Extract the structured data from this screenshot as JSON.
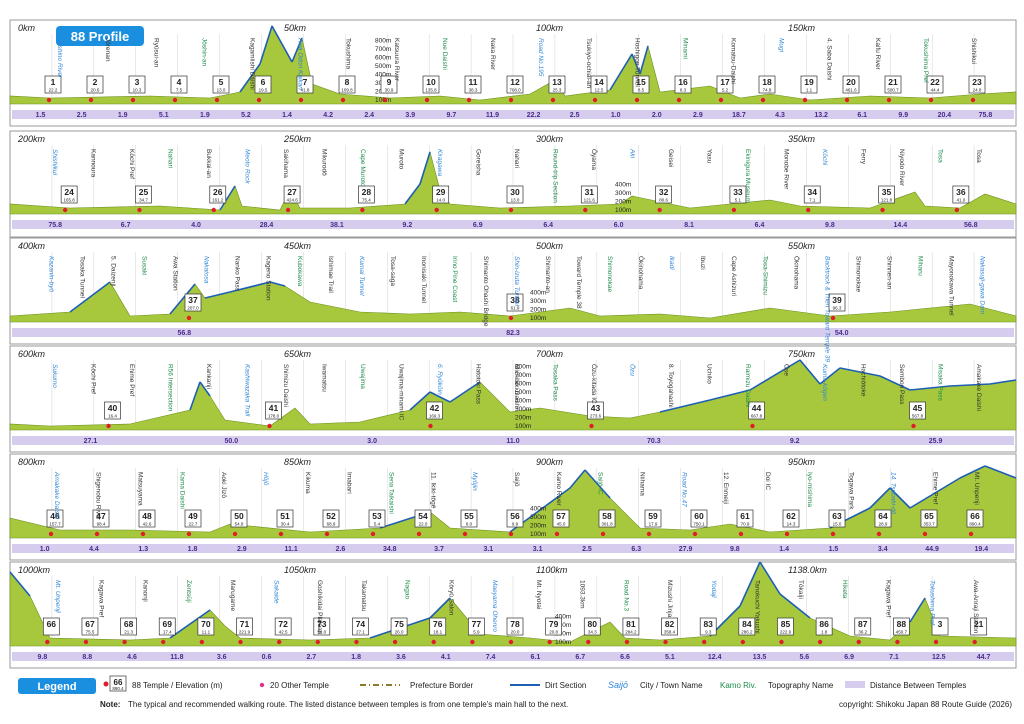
{
  "chart_data": {
    "type": "area",
    "title": "88 Profile",
    "km_labels": [
      [
        {
          "km": 0,
          "label": "0km"
        },
        {
          "km": 50,
          "label": "50km"
        },
        {
          "km": 100,
          "label": "100km"
        },
        {
          "km": 150,
          "label": "150km"
        }
      ],
      [
        {
          "km": 200,
          "label": "200km"
        },
        {
          "km": 250,
          "label": "250km"
        },
        {
          "km": 300,
          "label": "300km"
        },
        {
          "km": 350,
          "label": "350km"
        }
      ],
      [
        {
          "km": 400,
          "label": "400km"
        },
        {
          "km": 450,
          "label": "450km"
        },
        {
          "km": 500,
          "label": "500km"
        },
        {
          "km": 550,
          "label": "550km"
        }
      ],
      [
        {
          "km": 600,
          "label": "600km"
        },
        {
          "km": 650,
          "label": "650km"
        },
        {
          "km": 700,
          "label": "700km"
        },
        {
          "km": 750,
          "label": "750km"
        }
      ],
      [
        {
          "km": 800,
          "label": "800km"
        },
        {
          "km": 850,
          "label": "850km"
        },
        {
          "km": 900,
          "label": "900km"
        },
        {
          "km": 950,
          "label": "950km"
        }
      ],
      [
        {
          "km": 1000,
          "label": "1000km"
        },
        {
          "km": 1050,
          "label": "1050km"
        },
        {
          "km": 1100,
          "label": "1100km"
        },
        {
          "km": 1138,
          "label": "1138.0km"
        }
      ]
    ],
    "elevation_axis_labels": [
      "800m",
      "700m",
      "600m",
      "500m",
      "400m",
      "300m",
      "200m",
      "100m"
    ],
    "rows": [
      {
        "temples": [
          {
            "n": "1",
            "elev": "22.2"
          },
          {
            "n": "2",
            "elev": "20.6"
          },
          {
            "n": "3",
            "elev": "10.3"
          },
          {
            "n": "4",
            "elev": "7.5"
          },
          {
            "n": "5",
            "elev": "13.0"
          },
          {
            "n": "6",
            "elev": "19.5"
          },
          {
            "n": "7",
            "elev": "41.8"
          },
          {
            "n": "8",
            "elev": "109.8"
          },
          {
            "n": "9",
            "elev": "30.9"
          },
          {
            "n": "10",
            "elev": "135.8"
          },
          {
            "n": "11",
            "elev": "38.3"
          },
          {
            "n": "12",
            "elev": "708.0"
          },
          {
            "n": "13",
            "elev": "25.3"
          },
          {
            "n": "14",
            "elev": "12.5"
          },
          {
            "n": "15",
            "elev": "8.5"
          },
          {
            "n": "16",
            "elev": "8.3"
          },
          {
            "n": "17",
            "elev": "5.2"
          },
          {
            "n": "18",
            "elev": "74.8"
          },
          {
            "n": "19",
            "elev": "1.1"
          },
          {
            "n": "20",
            "elev": "461.6"
          },
          {
            "n": "21",
            "elev": "500.7"
          },
          {
            "n": "22",
            "elev": "44.4"
          },
          {
            "n": "23",
            "elev": "24.8"
          }
        ],
        "distances": [
          "1.5",
          "2.5",
          "1.9",
          "5.1",
          "1.9",
          "5.2",
          "1.4",
          "4.2",
          "2.4",
          "3.9",
          "9.7",
          "11.9",
          "22.2",
          "2.5",
          "1.0",
          "2.0",
          "2.9",
          "18.7",
          "4.3",
          "13.2",
          "6.1",
          "9.9",
          "20.4",
          "75.8"
        ],
        "names": [
          "Yoshino River",
          "Jōrenan",
          "Ryūsui-an",
          "Jōshin-an",
          "Kagamiishi Daishi",
          "Awa Odori Kaikan",
          "Tokushima",
          "Katsuura River",
          "Nue Daishi",
          "Naka River",
          "Road No.195",
          "Tsukiyo-ochiai-an",
          "Hoshigoe Tunnel",
          "Minami",
          "Komatsu-Daishi",
          "Mugi",
          "4. Saba Daishi",
          "Kaifu River",
          "Tokushima Pref",
          "Shishikui"
        ]
      },
      {
        "temples": [
          {
            "n": "24",
            "elev": "165.8"
          },
          {
            "n": "25",
            "elev": "34.7"
          },
          {
            "n": "26",
            "elev": "161.2"
          },
          {
            "n": "27",
            "elev": "424.6"
          },
          {
            "n": "28",
            "elev": "75.4"
          },
          {
            "n": "29",
            "elev": "14.0"
          },
          {
            "n": "30",
            "elev": "13.0"
          },
          {
            "n": "31",
            "elev": "121.6"
          },
          {
            "n": "32",
            "elev": "80.6"
          },
          {
            "n": "33",
            "elev": "5.1"
          },
          {
            "n": "34",
            "elev": "7.1"
          },
          {
            "n": "35",
            "elev": "121.8"
          },
          {
            "n": "36",
            "elev": "41.0"
          }
        ],
        "distances": [
          "75.8",
          "6.7",
          "4.0",
          "28.4",
          "38.1",
          "9.2",
          "6.9",
          "6.4",
          "6.0",
          "8.1",
          "6.4",
          "9.8",
          "14.4",
          "56.8"
        ],
        "names": [
          "Shishikui",
          "Kannoura",
          "Kōchi Pref",
          "Nahari",
          "Bukkai-an",
          "Meoto Rock",
          "Sakihama",
          "Mikurodō",
          "Cape Muroto",
          "Muroto",
          "Kiragawa",
          "Goreisha",
          "Nahari",
          "Round-trip Section",
          "Ōyama",
          "Aki",
          "Geisei",
          "Yasu",
          "Ekinigura Museum",
          "Monobe River",
          "Kōchi",
          "Ferry",
          "Niyodo River",
          "Tosa",
          "Tosa"
        ]
      },
      {
        "temples": [
          {
            "n": "37",
            "elev": "207.0"
          },
          {
            "n": "38",
            "elev": "61.9"
          },
          {
            "n": "39",
            "elev": "96.3"
          }
        ],
        "distances": [
          "56.8",
          "82.3",
          "54.0"
        ],
        "names": [
          "Kazanin-byō",
          "Tosaka Tunnel",
          "5. Daizenji",
          "Susaki",
          "Awa Station",
          "Nakatosa",
          "Nanko Pass",
          "Kageno Station",
          "Kubokawa",
          "Ishimae Trail",
          "Kumai Tunnel",
          "Tosa-saga",
          "Inonisaki Tunnel",
          "Irino Pine Coast",
          "Shimanto Ohashi Bridge",
          "Shin-izuta Tunnel",
          "Shimanto-an",
          "Toward Temple 38",
          "Shimonokae",
          "Ōkinohama",
          "Ikadi",
          "Ibuzi",
          "Cape Ashizuri",
          "Tosa-Shimizu",
          "Ōkinohama",
          "Backtrack & Then Toward Temple 39",
          "Shimonokae",
          "Shinnen-an",
          "Miharu",
          "Mayonokawa Tunnel",
          "Nakasuji-gawa Dam"
        ]
      },
      {
        "temples": [
          {
            "n": "40",
            "elev": "16.4"
          },
          {
            "n": "41",
            "elev": "178.0"
          },
          {
            "n": "42",
            "elev": "169.3"
          },
          {
            "n": "43",
            "elev": "273.6"
          },
          {
            "n": "44",
            "elev": "667.8"
          },
          {
            "n": "45",
            "elev": "567.8"
          }
        ],
        "distances": [
          "27.1",
          "50.0",
          "3.0",
          "11.0",
          "70.3",
          "9.2",
          "25.9"
        ],
        "names": [
          "Sukumo",
          "Kōchi Pref",
          "Ehime Pref",
          "R56 Intersection",
          "Kankanji",
          "Kashiwazaka Trail",
          "Shimizu Daishi",
          "Iwamatsu",
          "Uwajima",
          "Uwajima-minami IC",
          "6. Ryūkōin",
          "Hatotoki Pass",
          "Michibiki Daishi",
          "Tosaka Pass",
          "Ōzu-kitada IC",
          "Ōzu",
          "8. Toyogahashi",
          "Uchiko",
          "Raimizu Daishi",
          "Ōse",
          "Kuma-kōgen",
          "Hachiōtoke",
          "Sembon Pass",
          "Misaka Pass",
          "Amakake Daishi"
        ]
      },
      {
        "temples": [
          {
            "n": "46",
            "elev": "157.7"
          },
          {
            "n": "47",
            "elev": "98.4"
          },
          {
            "n": "48",
            "elev": "42.6"
          },
          {
            "n": "49",
            "elev": "22.7"
          },
          {
            "n": "50",
            "elev": "54.8"
          },
          {
            "n": "51",
            "elev": "30.4"
          },
          {
            "n": "52",
            "elev": "68.9"
          },
          {
            "n": "53",
            "elev": "5.4"
          },
          {
            "n": "54",
            "elev": "22.0"
          },
          {
            "n": "55",
            "elev": "8.0"
          },
          {
            "n": "56",
            "elev": "9.9"
          },
          {
            "n": "57",
            "elev": "45.0"
          },
          {
            "n": "58",
            "elev": "301.8"
          },
          {
            "n": "59",
            "elev": "17.9"
          },
          {
            "n": "60",
            "elev": "750.1"
          },
          {
            "n": "61",
            "elev": "70.9"
          },
          {
            "n": "62",
            "elev": "14.3"
          },
          {
            "n": "63",
            "elev": "15.0"
          },
          {
            "n": "64",
            "elev": "28.9"
          },
          {
            "n": "65",
            "elev": "353.7"
          },
          {
            "n": "66",
            "elev": "890.4"
          }
        ],
        "distances": [
          "1.0",
          "4.4",
          "1.3",
          "1.8",
          "2.9",
          "11.1",
          "2.6",
          "34.8",
          "3.7",
          "3.1",
          "3.1",
          "2.5",
          "6.3",
          "27.9",
          "9.8",
          "1.4",
          "1.5",
          "3.4",
          "44.9",
          "19.4"
        ],
        "names": [
          "Amakake Daishi",
          "Shigenobu River",
          "Matsuyama",
          "Kama Daishi",
          "Aoki Jizō",
          "Hōjō",
          "Kikuma",
          "Imabari",
          "Sena Taikaishi",
          "11. Ikiki-tōgē",
          "Myōjin",
          "Saijō",
          "Kamo River",
          "Saijō IC",
          "Niihama",
          "Road No.47",
          "12. Enmeiji",
          "Doi IC",
          "Iyo-mishima",
          "Togawa Park",
          "14. Tsubaki-dō",
          "Ehime Pref",
          "Mt. Unpenji"
        ]
      },
      {
        "temples": [
          {
            "n": "66",
            "elev": ""
          },
          {
            "n": "67",
            "elev": "75.5"
          },
          {
            "n": "68",
            "elev": "21.3"
          },
          {
            "n": "69",
            "elev": "17.4"
          },
          {
            "n": "70",
            "elev": "11.1"
          },
          {
            "n": "71",
            "elev": "221.9"
          },
          {
            "n": "72",
            "elev": "42.5"
          },
          {
            "n": "73",
            "elev": "54.0"
          },
          {
            "n": "74",
            "elev": "27.1"
          },
          {
            "n": "75",
            "elev": "26.0"
          },
          {
            "n": "76",
            "elev": "18.1"
          },
          {
            "n": "77",
            "elev": "5.9"
          },
          {
            "n": "78",
            "elev": "20.0"
          },
          {
            "n": "79",
            "elev": "20.8"
          },
          {
            "n": "80",
            "elev": "34.3"
          },
          {
            "n": "81",
            "elev": "284.2"
          },
          {
            "n": "82",
            "elev": "358.4"
          },
          {
            "n": "83",
            "elev": "9.3"
          },
          {
            "n": "84",
            "elev": "286.2"
          },
          {
            "n": "85",
            "elev": "222.9"
          },
          {
            "n": "86",
            "elev": "1.8"
          },
          {
            "n": "87",
            "elev": "36.2"
          },
          {
            "n": "88",
            "elev": "450.7"
          },
          {
            "n": "3",
            "elev": ""
          },
          {
            "n": "21",
            "elev": ""
          }
        ],
        "distances": [
          "9.8",
          "8.8",
          "4.6",
          "11.8",
          "3.6",
          "0.6",
          "2.7",
          "1.8",
          "3.6",
          "4.1",
          "7.4",
          "6.1",
          "6.7",
          "6.6",
          "5.1",
          "12.4",
          "13.5",
          "5.6",
          "6.9",
          "7.1",
          "12.5",
          "44.7"
        ],
        "names": [
          "Mt. Unpenji",
          "Kagawa Pref",
          "Kanonji",
          "Zentsūji",
          "Marugame",
          "Sakaide",
          "Goshikidai Plateau",
          "Takamatsu",
          "Nagao",
          "Kōryū Salon",
          "Maeyama Ohenro",
          "Mt. Nyotai",
          "1093.3km",
          "Road No.3",
          "Mizushi Jinja",
          "Yodaji",
          "Tanokuchi Yakushi",
          "Tōkaiji",
          "Hiketa",
          "Kagawa Pref",
          "Tokushima Pref",
          "Awa-Anraji Station"
        ]
      }
    ]
  },
  "legend": {
    "title": "Legend",
    "sample_number": "66",
    "sample_elev": "890.4",
    "temple_desc": "88 Temple / Elevation (m)",
    "other_temple_desc": "20 Other Temple",
    "border_desc": "Prefecture Border",
    "dirt_desc": "Dirt Section",
    "city_sample": "Saijō",
    "city_desc": "City / Town Name",
    "topo_sample": "Kamo Riv.",
    "topo_desc": "Topography Name",
    "distance_desc": "Distance Between Temples"
  },
  "note_label": "Note:",
  "note_text": "The typical and recommended walking route. The listed distance between temples is from one temple's main hall to the next.",
  "copyright": "copyright: Shikoku Japan 88 Route Guide (2026)",
  "colors": {
    "fill": "#a7c83c",
    "fill_dark": "#6b8f1d",
    "dirt": "#1e5fb4",
    "distance_bar": "#d6cdee",
    "distance_text": "#4a2a8c",
    "title_bg": "#1a8fe0",
    "city": "#2f86d6",
    "topo": "#1e8c4a",
    "other": "#e0338a"
  }
}
